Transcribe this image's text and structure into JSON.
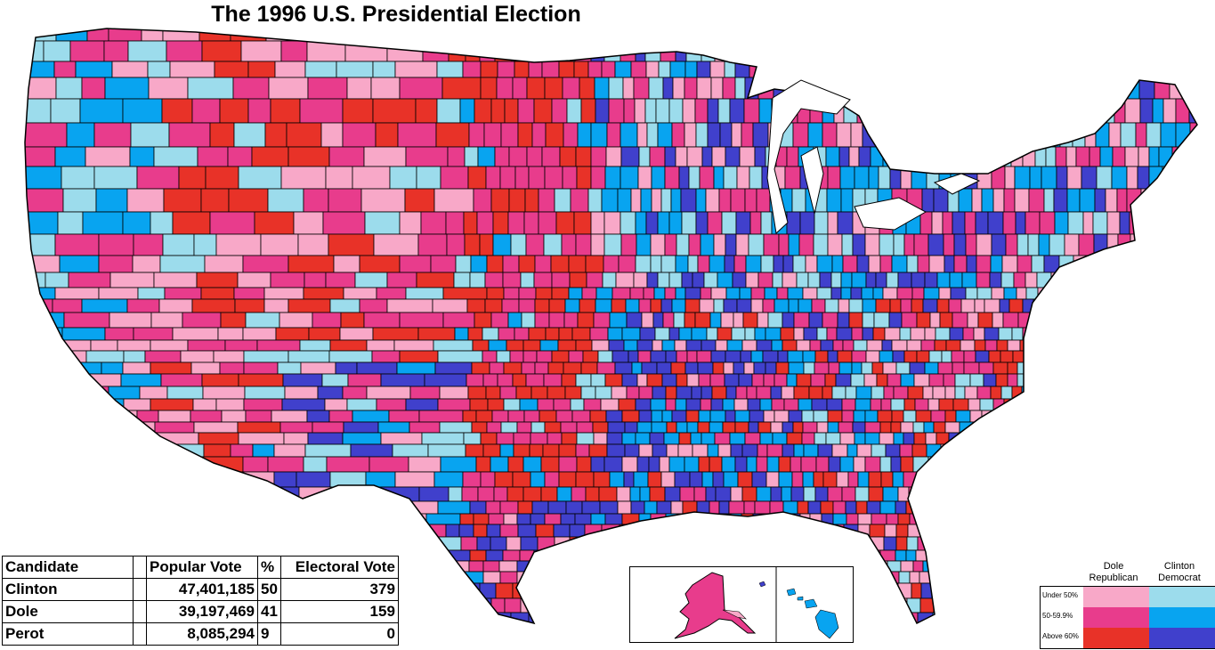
{
  "title": "The 1996 U.S. Presidential Election",
  "colors": {
    "dole_under50": "#f8a8c8",
    "dole_50_59": "#e83c8c",
    "dole_above60": "#e83228",
    "clinton_under50": "#9cdcec",
    "clinton_50_59": "#08a4f0",
    "clinton_above60": "#4040cc",
    "map_border": "#000000"
  },
  "results_table": {
    "headers": {
      "candidate": "Candidate",
      "popular_vote": "Popular Vote",
      "percent": "%",
      "electoral_vote": "Electoral Vote"
    },
    "rows": [
      {
        "candidate": "Clinton",
        "popular_vote": "47,401,185",
        "percent": "50",
        "electoral_vote": "379"
      },
      {
        "candidate": "Dole",
        "popular_vote": "39,197,469",
        "percent": "41",
        "electoral_vote": "159"
      },
      {
        "candidate": "Perot",
        "popular_vote": "8,085,294",
        "percent": "9",
        "electoral_vote": "0"
      }
    ]
  },
  "legend": {
    "columns": [
      {
        "line1": "Dole",
        "line2": "Republican"
      },
      {
        "line1": "Clinton",
        "line2": "Democrat"
      }
    ],
    "rows": [
      {
        "label": "Under 50%",
        "dole": "#f8a8c8",
        "clinton": "#9cdcec"
      },
      {
        "label": "50-59.9%",
        "dole": "#e83c8c",
        "clinton": "#08a4f0"
      },
      {
        "label": "Above 60%",
        "dole": "#e83228",
        "clinton": "#4040cc"
      }
    ]
  },
  "insets": [
    "Alaska",
    "Hawaii"
  ]
}
